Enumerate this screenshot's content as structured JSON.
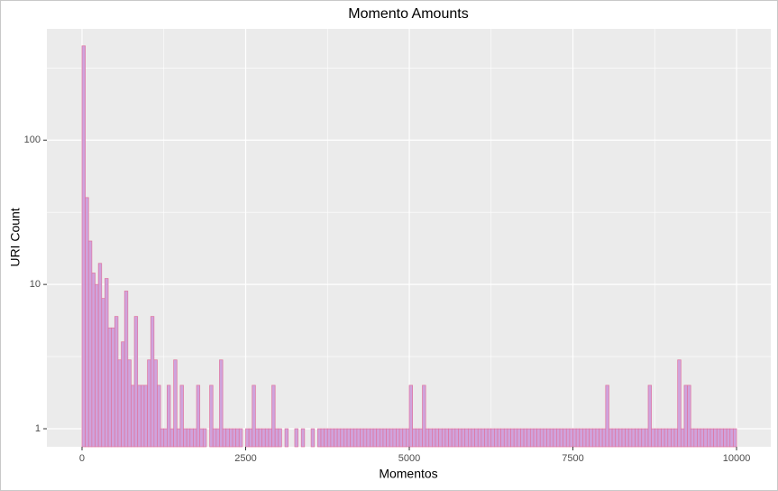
{
  "chart_data": {
    "type": "histogram",
    "title": "Momento Amounts",
    "x_label": "Momentos",
    "y_label": "URI Count",
    "bins": [
      0,
      50,
      100,
      150,
      200,
      250,
      300,
      350,
      400,
      450,
      500,
      550,
      600,
      650,
      700,
      750,
      800,
      850,
      900,
      950,
      1000,
      1050,
      1100,
      1150,
      1200,
      1250,
      1300,
      1350,
      1400,
      1450,
      1500,
      1550,
      1600,
      1650,
      1700,
      1750,
      1800,
      1850,
      1900,
      1950,
      2000,
      2050,
      2100,
      2150,
      2200,
      2250,
      2300,
      2350,
      2400,
      2450,
      2500,
      2550,
      2600,
      2650,
      2700,
      2750,
      2800,
      2850,
      2900,
      2950,
      3000,
      3050,
      3100,
      3150,
      3200,
      3250,
      3300,
      3350,
      3400,
      3450,
      3500,
      3550,
      3600,
      3650,
      3700,
      3750,
      3800,
      3850,
      3900,
      3950,
      4000,
      4050,
      4100,
      4150,
      4200,
      4250,
      4300,
      4350,
      4400,
      4450,
      4500,
      4550,
      4600,
      4650,
      4700,
      4750,
      4800,
      4850,
      4900,
      4950,
      5000,
      5050,
      5100,
      5150,
      5200,
      5250,
      5300,
      5350,
      5400,
      5450,
      5500,
      5550,
      5600,
      5650,
      5700,
      5750,
      5800,
      5850,
      5900,
      5950,
      6000,
      6050,
      6100,
      6150,
      6200,
      6250,
      6300,
      6350,
      6400,
      6450,
      6500,
      6550,
      6600,
      6650,
      6700,
      6750,
      6800,
      6850,
      6900,
      6950,
      7000,
      7050,
      7100,
      7150,
      7200,
      7250,
      7300,
      7350,
      7400,
      7450,
      7500,
      7550,
      7600,
      7650,
      7700,
      7750,
      7800,
      7850,
      7900,
      7950,
      8000,
      8050,
      8100,
      8150,
      8200,
      8250,
      8300,
      8350,
      8400,
      8450,
      8500,
      8550,
      8600,
      8650,
      8700,
      8750,
      8800,
      8850,
      8900,
      8950,
      9000,
      9050,
      9100,
      9150,
      9200,
      9250,
      9300,
      9350,
      9400,
      9450,
      9500,
      9550,
      9600,
      9650,
      9700,
      9750,
      9800,
      9850,
      9900,
      9950,
      10000
    ],
    "values": [
      450,
      40,
      20,
      12,
      10,
      14,
      8,
      11,
      5,
      5,
      6,
      3,
      4,
      9,
      3,
      2,
      6,
      2,
      2,
      2,
      3,
      6,
      3,
      2,
      1,
      1,
      2,
      1,
      3,
      1,
      2,
      1,
      1,
      1,
      1,
      2,
      1,
      1,
      0,
      2,
      1,
      1,
      3,
      1,
      1,
      1,
      1,
      1,
      1,
      0,
      1,
      1,
      2,
      1,
      1,
      1,
      1,
      1,
      2,
      1,
      1,
      0,
      1,
      0,
      0,
      1,
      0,
      1,
      0,
      0,
      1,
      0,
      1,
      1,
      1,
      1,
      1,
      1,
      1,
      1,
      1,
      1,
      1,
      1,
      1,
      1,
      1,
      1,
      1,
      1,
      1,
      1,
      1,
      1,
      1,
      1,
      1,
      1,
      1,
      1,
      2,
      1,
      1,
      1,
      2,
      1,
      1,
      1,
      1,
      1,
      1,
      1,
      1,
      1,
      1,
      1,
      1,
      1,
      1,
      1,
      1,
      1,
      1,
      1,
      1,
      1,
      1,
      1,
      1,
      1,
      1,
      1,
      1,
      1,
      1,
      1,
      1,
      1,
      1,
      1,
      1,
      1,
      1,
      1,
      1,
      1,
      1,
      1,
      1,
      1,
      1,
      1,
      1,
      1,
      1,
      1,
      1,
      1,
      1,
      1,
      2,
      1,
      1,
      1,
      1,
      1,
      1,
      1,
      1,
      1,
      1,
      1,
      1,
      2,
      1,
      1,
      1,
      1,
      1,
      1,
      1,
      1,
      3,
      1,
      2,
      2,
      1,
      1,
      1,
      1,
      1,
      1,
      1,
      1,
      1,
      1,
      1,
      1,
      1,
      1
    ],
    "color": "#cfa3dc",
    "edgecolor": "#e0749f",
    "xlim": [
      -537,
      10523
    ],
    "xticks": [
      0,
      2500,
      5000,
      7500,
      10000
    ],
    "ylim": [
      0.75,
      590
    ],
    "yticks": [
      1,
      10,
      100
    ],
    "log_y": true,
    "grid": true
  }
}
